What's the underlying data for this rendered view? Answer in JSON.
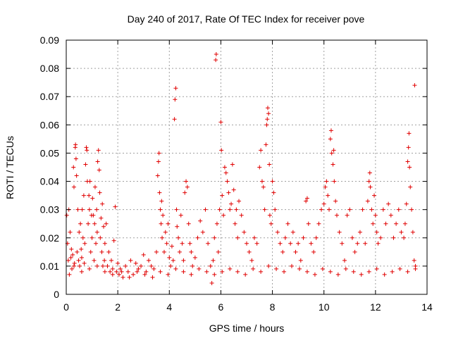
{
  "chart_data": {
    "type": "scatter",
    "title": "Day 240 of 2017, Rate Of TEC Index for receiver pove",
    "xlabel": "GPS time / hours",
    "ylabel": "ROTI / TECUs",
    "xlim": [
      0,
      14
    ],
    "ylim": [
      0,
      0.09
    ],
    "xticks": [
      0,
      2,
      4,
      6,
      8,
      10,
      12,
      14
    ],
    "yticks": [
      0,
      0.01,
      0.02,
      0.03,
      0.04,
      0.05,
      0.06,
      0.07,
      0.08,
      0.09
    ],
    "xtick_labels": [
      "0",
      "2",
      "4",
      "6",
      "8",
      "10",
      "12",
      "14"
    ],
    "ytick_labels": [
      "0",
      "0.01",
      "0.02",
      "0.03",
      "0.04",
      "0.05",
      "0.06",
      "0.07",
      "0.08",
      "0.09"
    ],
    "grid": true,
    "marker": "+",
    "marker_color": "#e00000",
    "points": [
      [
        0.02,
        0.028
      ],
      [
        0.05,
        0.018
      ],
      [
        0.08,
        0.012
      ],
      [
        0.1,
        0.03
      ],
      [
        0.12,
        0.007
      ],
      [
        0.15,
        0.022
      ],
      [
        0.18,
        0.013
      ],
      [
        0.2,
        0.016
      ],
      [
        0.22,
        0.009
      ],
      [
        0.25,
        0.014
      ],
      [
        0.28,
        0.045
      ],
      [
        0.3,
        0.038
      ],
      [
        0.32,
        0.011
      ],
      [
        0.35,
        0.052
      ],
      [
        0.36,
        0.053
      ],
      [
        0.38,
        0.048
      ],
      [
        0.4,
        0.042
      ],
      [
        0.42,
        0.015
      ],
      [
        0.45,
        0.03
      ],
      [
        0.48,
        0.012
      ],
      [
        0.5,
        0.022
      ],
      [
        0.52,
        0.01
      ],
      [
        0.55,
        0.025
      ],
      [
        0.58,
        0.016
      ],
      [
        0.6,
        0.013
      ],
      [
        0.62,
        0.03
      ],
      [
        0.65,
        0.02
      ],
      [
        0.68,
        0.035
      ],
      [
        0.7,
        0.011
      ],
      [
        0.72,
        0.018
      ],
      [
        0.75,
        0.046
      ],
      [
        0.78,
        0.052
      ],
      [
        0.8,
        0.051
      ],
      [
        0.82,
        0.04
      ],
      [
        0.85,
        0.025
      ],
      [
        0.88,
        0.035
      ],
      [
        0.9,
        0.03
      ],
      [
        0.92,
        0.04
      ],
      [
        0.95,
        0.015
      ],
      [
        0.98,
        0.028
      ],
      [
        1.0,
        0.02
      ],
      [
        1.02,
        0.034
      ],
      [
        1.05,
        0.028
      ],
      [
        1.08,
        0.012
      ],
      [
        1.1,
        0.025
      ],
      [
        1.12,
        0.038
      ],
      [
        1.15,
        0.018
      ],
      [
        1.18,
        0.03
      ],
      [
        1.2,
        0.022
      ],
      [
        1.22,
        0.047
      ],
      [
        1.25,
        0.051
      ],
      [
        1.28,
        0.044
      ],
      [
        1.3,
        0.036
      ],
      [
        1.32,
        0.02
      ],
      [
        1.35,
        0.027
      ],
      [
        1.38,
        0.015
      ],
      [
        1.4,
        0.032
      ],
      [
        1.42,
        0.01
      ],
      [
        1.45,
        0.024
      ],
      [
        1.48,
        0.012
      ],
      [
        1.5,
        0.018
      ],
      [
        1.55,
        0.025
      ],
      [
        1.6,
        0.01
      ],
      [
        1.65,
        0.015
      ],
      [
        1.7,
        0.008
      ],
      [
        1.75,
        0.012
      ],
      [
        1.8,
        0.009
      ],
      [
        1.85,
        0.019
      ],
      [
        1.9,
        0.031
      ],
      [
        1.95,
        0.008
      ],
      [
        2.0,
        0.011
      ],
      [
        2.05,
        0.007
      ],
      [
        2.1,
        0.009
      ],
      [
        2.2,
        0.006
      ],
      [
        2.3,
        0.01
      ],
      [
        2.4,
        0.008
      ],
      [
        2.5,
        0.012
      ],
      [
        2.6,
        0.007
      ],
      [
        2.7,
        0.011
      ],
      [
        2.8,
        0.009
      ],
      [
        2.9,
        0.01
      ],
      [
        3.0,
        0.014
      ],
      [
        3.1,
        0.008
      ],
      [
        3.2,
        0.012
      ],
      [
        3.3,
        0.01
      ],
      [
        3.4,
        0.009
      ],
      [
        3.5,
        0.015
      ],
      [
        3.55,
        0.042
      ],
      [
        3.58,
        0.047
      ],
      [
        3.6,
        0.05
      ],
      [
        3.62,
        0.036
      ],
      [
        3.65,
        0.03
      ],
      [
        3.68,
        0.025
      ],
      [
        3.7,
        0.033
      ],
      [
        3.72,
        0.02
      ],
      [
        3.75,
        0.028
      ],
      [
        3.8,
        0.015
      ],
      [
        3.85,
        0.022
      ],
      [
        3.9,
        0.018
      ],
      [
        3.95,
        0.025
      ],
      [
        4.0,
        0.013
      ],
      [
        4.05,
        0.01
      ],
      [
        4.1,
        0.017
      ],
      [
        4.15,
        0.012
      ],
      [
        4.2,
        0.062
      ],
      [
        4.22,
        0.069
      ],
      [
        4.25,
        0.073
      ],
      [
        4.28,
        0.03
      ],
      [
        4.3,
        0.024
      ],
      [
        4.35,
        0.02
      ],
      [
        4.4,
        0.015
      ],
      [
        4.45,
        0.028
      ],
      [
        4.5,
        0.018
      ],
      [
        4.55,
        0.012
      ],
      [
        4.6,
        0.036
      ],
      [
        4.65,
        0.04
      ],
      [
        4.7,
        0.038
      ],
      [
        4.75,
        0.025
      ],
      [
        4.8,
        0.018
      ],
      [
        4.85,
        0.015
      ],
      [
        4.9,
        0.01
      ],
      [
        5.0,
        0.013
      ],
      [
        5.1,
        0.02
      ],
      [
        5.2,
        0.026
      ],
      [
        5.3,
        0.022
      ],
      [
        5.4,
        0.03
      ],
      [
        5.5,
        0.018
      ],
      [
        5.6,
        0.01
      ],
      [
        5.65,
        0.004
      ],
      [
        5.7,
        0.012
      ],
      [
        5.75,
        0.02
      ],
      [
        5.8,
        0.083
      ],
      [
        5.82,
        0.085
      ],
      [
        5.85,
        0.025
      ],
      [
        5.9,
        0.015
      ],
      [
        5.95,
        0.03
      ],
      [
        6.0,
        0.061
      ],
      [
        6.02,
        0.051
      ],
      [
        6.05,
        0.035
      ],
      [
        6.1,
        0.028
      ],
      [
        6.15,
        0.045
      ],
      [
        6.2,
        0.043
      ],
      [
        6.25,
        0.04
      ],
      [
        6.3,
        0.036
      ],
      [
        6.35,
        0.03
      ],
      [
        6.4,
        0.032
      ],
      [
        6.45,
        0.046
      ],
      [
        6.5,
        0.037
      ],
      [
        6.55,
        0.025
      ],
      [
        6.6,
        0.03
      ],
      [
        6.65,
        0.02
      ],
      [
        6.7,
        0.033
      ],
      [
        6.8,
        0.028
      ],
      [
        6.9,
        0.022
      ],
      [
        7.0,
        0.018
      ],
      [
        7.1,
        0.015
      ],
      [
        7.2,
        0.012
      ],
      [
        7.3,
        0.02
      ],
      [
        7.4,
        0.018
      ],
      [
        7.5,
        0.045
      ],
      [
        7.55,
        0.051
      ],
      [
        7.6,
        0.04
      ],
      [
        7.65,
        0.038
      ],
      [
        7.7,
        0.03
      ],
      [
        7.75,
        0.053
      ],
      [
        7.78,
        0.06
      ],
      [
        7.8,
        0.062
      ],
      [
        7.82,
        0.066
      ],
      [
        7.85,
        0.064
      ],
      [
        7.88,
        0.046
      ],
      [
        7.9,
        0.028
      ],
      [
        7.95,
        0.025
      ],
      [
        8.0,
        0.04
      ],
      [
        8.05,
        0.036
      ],
      [
        8.1,
        0.03
      ],
      [
        8.2,
        0.022
      ],
      [
        8.3,
        0.018
      ],
      [
        8.4,
        0.015
      ],
      [
        8.5,
        0.02
      ],
      [
        8.6,
        0.025
      ],
      [
        8.7,
        0.018
      ],
      [
        8.8,
        0.022
      ],
      [
        8.9,
        0.015
      ],
      [
        9.0,
        0.018
      ],
      [
        9.1,
        0.012
      ],
      [
        9.2,
        0.02
      ],
      [
        9.3,
        0.033
      ],
      [
        9.35,
        0.034
      ],
      [
        9.4,
        0.025
      ],
      [
        9.5,
        0.018
      ],
      [
        9.6,
        0.015
      ],
      [
        9.7,
        0.02
      ],
      [
        9.8,
        0.025
      ],
      [
        9.9,
        0.03
      ],
      [
        10.0,
        0.032
      ],
      [
        10.05,
        0.038
      ],
      [
        10.1,
        0.04
      ],
      [
        10.15,
        0.035
      ],
      [
        10.2,
        0.03
      ],
      [
        10.25,
        0.055
      ],
      [
        10.28,
        0.058
      ],
      [
        10.3,
        0.05
      ],
      [
        10.35,
        0.046
      ],
      [
        10.38,
        0.051
      ],
      [
        10.4,
        0.04
      ],
      [
        10.45,
        0.033
      ],
      [
        10.5,
        0.028
      ],
      [
        10.6,
        0.022
      ],
      [
        10.7,
        0.018
      ],
      [
        10.8,
        0.012
      ],
      [
        10.9,
        0.028
      ],
      [
        11.0,
        0.03
      ],
      [
        11.1,
        0.02
      ],
      [
        11.2,
        0.015
      ],
      [
        11.3,
        0.018
      ],
      [
        11.4,
        0.022
      ],
      [
        11.5,
        0.03
      ],
      [
        11.6,
        0.018
      ],
      [
        11.7,
        0.033
      ],
      [
        11.75,
        0.04
      ],
      [
        11.78,
        0.043
      ],
      [
        11.8,
        0.038
      ],
      [
        11.85,
        0.03
      ],
      [
        11.9,
        0.025
      ],
      [
        11.95,
        0.035
      ],
      [
        12.0,
        0.028
      ],
      [
        12.05,
        0.022
      ],
      [
        12.1,
        0.018
      ],
      [
        12.2,
        0.02
      ],
      [
        12.3,
        0.03
      ],
      [
        12.4,
        0.025
      ],
      [
        12.5,
        0.032
      ],
      [
        12.6,
        0.028
      ],
      [
        12.7,
        0.02
      ],
      [
        12.8,
        0.025
      ],
      [
        12.9,
        0.03
      ],
      [
        13.0,
        0.022
      ],
      [
        13.1,
        0.02
      ],
      [
        13.15,
        0.025
      ],
      [
        13.2,
        0.032
      ],
      [
        13.25,
        0.047
      ],
      [
        13.28,
        0.052
      ],
      [
        13.3,
        0.057
      ],
      [
        13.32,
        0.045
      ],
      [
        13.35,
        0.038
      ],
      [
        13.4,
        0.03
      ],
      [
        13.45,
        0.022
      ],
      [
        13.5,
        0.012
      ],
      [
        13.52,
        0.074
      ],
      [
        13.55,
        0.01
      ],
      [
        0.3,
        0.01
      ],
      [
        0.6,
        0.008
      ],
      [
        0.9,
        0.009
      ],
      [
        1.2,
        0.01
      ],
      [
        1.5,
        0.008
      ],
      [
        1.8,
        0.007
      ],
      [
        2.15,
        0.008
      ],
      [
        2.45,
        0.006
      ],
      [
        2.75,
        0.008
      ],
      [
        3.05,
        0.007
      ],
      [
        3.35,
        0.006
      ],
      [
        3.65,
        0.008
      ],
      [
        3.95,
        0.007
      ],
      [
        4.25,
        0.009
      ],
      [
        4.55,
        0.008
      ],
      [
        4.85,
        0.007
      ],
      [
        5.15,
        0.009
      ],
      [
        5.45,
        0.008
      ],
      [
        5.75,
        0.007
      ],
      [
        6.05,
        0.008
      ],
      [
        6.35,
        0.009
      ],
      [
        6.65,
        0.008
      ],
      [
        6.95,
        0.007
      ],
      [
        7.25,
        0.009
      ],
      [
        7.55,
        0.008
      ],
      [
        7.85,
        0.01
      ],
      [
        8.15,
        0.009
      ],
      [
        8.45,
        0.008
      ],
      [
        8.75,
        0.01
      ],
      [
        9.05,
        0.009
      ],
      [
        9.35,
        0.008
      ],
      [
        9.65,
        0.007
      ],
      [
        9.95,
        0.009
      ],
      [
        10.25,
        0.008
      ],
      [
        10.55,
        0.007
      ],
      [
        10.85,
        0.009
      ],
      [
        11.15,
        0.008
      ],
      [
        11.45,
        0.007
      ],
      [
        11.75,
        0.008
      ],
      [
        12.05,
        0.009
      ],
      [
        12.35,
        0.007
      ],
      [
        12.65,
        0.008
      ],
      [
        12.95,
        0.009
      ],
      [
        13.25,
        0.008
      ],
      [
        13.55,
        0.009
      ]
    ]
  }
}
